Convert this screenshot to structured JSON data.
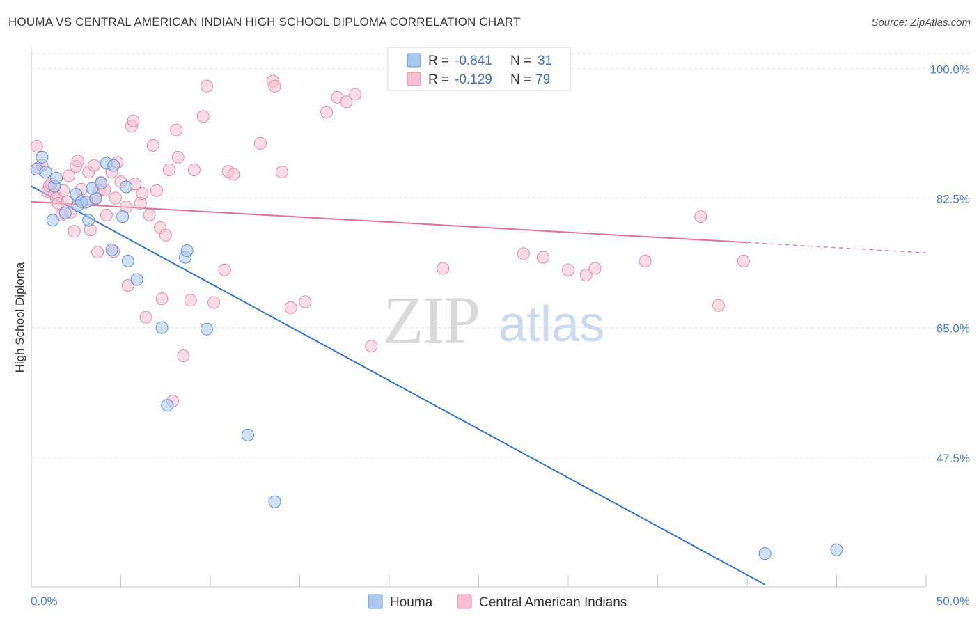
{
  "title": "HOUMA VS CENTRAL AMERICAN INDIAN HIGH SCHOOL DIPLOMA CORRELATION CHART",
  "source": "Source: ZipAtlas.com",
  "watermark": {
    "zip": "ZIP",
    "atlas": "atlas"
  },
  "colors": {
    "houma_fill": "#aac8f0",
    "houma_stroke": "#5b8fd6",
    "houma_line": "#2f75d6",
    "cai_fill": "#f7bfd0",
    "cai_stroke": "#e48aa6",
    "cai_line": "#e0719a",
    "grid": "#dddddd",
    "axis_label": "#4a7fd4"
  },
  "legend_top": {
    "rows": [
      {
        "r_label": "R = ",
        "r_value": "-0.841",
        "n_label": "N = ",
        "n_value": "31"
      },
      {
        "r_label": "R = ",
        "r_value": "-0.129",
        "n_label": "N = ",
        "n_value": "79"
      }
    ]
  },
  "legend_bottom": {
    "items": [
      "Houma",
      "Central American Indians"
    ]
  },
  "chart_data": {
    "type": "scatter",
    "title": "HOUMA VS CENTRAL AMERICAN INDIAN HIGH SCHOOL DIPLOMA CORRELATION CHART",
    "xlabel": "",
    "ylabel": "High School Diploma",
    "xlim": [
      0,
      50
    ],
    "ylim": [
      30,
      102
    ],
    "x_tick_labels": [
      "0.0%",
      "50.0%"
    ],
    "y_ticks": [
      100,
      82.5,
      65,
      47.5
    ],
    "y_tick_labels": [
      "100.0%",
      "82.5%",
      "65.0%",
      "47.5%"
    ],
    "grid": true,
    "legend_placement": "top-center",
    "series": [
      {
        "name": "Houma",
        "r": -0.841,
        "n": 31,
        "trend": {
          "x": [
            0,
            41
          ],
          "y": [
            84.1,
            30.3
          ]
        },
        "points": [
          [
            0.3,
            86.4
          ],
          [
            0.6,
            88.0
          ],
          [
            0.8,
            86.0
          ],
          [
            1.3,
            84.1
          ],
          [
            1.4,
            85.2
          ],
          [
            1.2,
            79.5
          ],
          [
            2.5,
            83.0
          ],
          [
            2.6,
            81.5
          ],
          [
            1.9,
            80.5
          ],
          [
            2.8,
            82.0
          ],
          [
            3.1,
            82.0
          ],
          [
            3.6,
            82.5
          ],
          [
            3.2,
            79.5
          ],
          [
            3.4,
            83.8
          ],
          [
            3.9,
            84.5
          ],
          [
            4.2,
            87.2
          ],
          [
            4.6,
            86.9
          ],
          [
            4.5,
            75.5
          ],
          [
            5.1,
            80.0
          ],
          [
            5.4,
            74.0
          ],
          [
            5.3,
            84.0
          ],
          [
            5.9,
            71.5
          ],
          [
            8.6,
            74.5
          ],
          [
            8.7,
            75.4
          ],
          [
            7.3,
            65.0
          ],
          [
            7.6,
            54.5
          ],
          [
            9.8,
            64.8
          ],
          [
            12.1,
            50.5
          ],
          [
            13.6,
            41.5
          ],
          [
            41.0,
            34.5
          ],
          [
            45.0,
            35.0
          ]
        ]
      },
      {
        "name": "Central American Indians",
        "r": -0.129,
        "n": 79,
        "trend": {
          "x": [
            0,
            40
          ],
          "y": [
            82.0,
            76.5
          ]
        },
        "trend_dashed": {
          "x": [
            40,
            50
          ],
          "y": [
            76.5,
            75.1
          ]
        },
        "points": [
          [
            0.3,
            89.5
          ],
          [
            0.4,
            86.6
          ],
          [
            0.6,
            86.9
          ],
          [
            0.9,
            83.4
          ],
          [
            1.0,
            84.1
          ],
          [
            1.1,
            84.4
          ],
          [
            1.3,
            83.0
          ],
          [
            1.4,
            82.5
          ],
          [
            1.5,
            81.8
          ],
          [
            1.7,
            80.2
          ],
          [
            1.8,
            83.5
          ],
          [
            2.0,
            82.0
          ],
          [
            2.1,
            85.5
          ],
          [
            2.2,
            80.6
          ],
          [
            2.4,
            78.0
          ],
          [
            2.5,
            86.8
          ],
          [
            2.6,
            87.5
          ],
          [
            2.8,
            83.7
          ],
          [
            3.0,
            81.9
          ],
          [
            3.2,
            86.0
          ],
          [
            3.3,
            78.2
          ],
          [
            3.5,
            86.9
          ],
          [
            3.6,
            82.4
          ],
          [
            3.7,
            75.2
          ],
          [
            3.8,
            83.5
          ],
          [
            3.9,
            84.6
          ],
          [
            4.1,
            83.6
          ],
          [
            4.2,
            80.2
          ],
          [
            4.5,
            86.0
          ],
          [
            4.6,
            75.3
          ],
          [
            4.7,
            82.5
          ],
          [
            4.8,
            87.3
          ],
          [
            5.0,
            84.7
          ],
          [
            5.3,
            81.3
          ],
          [
            5.4,
            70.7
          ],
          [
            5.6,
            92.2
          ],
          [
            5.7,
            92.9
          ],
          [
            5.8,
            84.4
          ],
          [
            6.1,
            81.8
          ],
          [
            6.2,
            83.1
          ],
          [
            6.4,
            66.4
          ],
          [
            6.6,
            80.2
          ],
          [
            6.8,
            89.6
          ],
          [
            7.0,
            83.5
          ],
          [
            7.2,
            78.5
          ],
          [
            7.3,
            68.9
          ],
          [
            7.5,
            77.5
          ],
          [
            7.7,
            86.3
          ],
          [
            7.9,
            55.1
          ],
          [
            8.1,
            91.7
          ],
          [
            8.2,
            88.0
          ],
          [
            8.5,
            61.2
          ],
          [
            8.9,
            68.7
          ],
          [
            9.1,
            86.3
          ],
          [
            9.6,
            93.5
          ],
          [
            9.8,
            97.6
          ],
          [
            10.2,
            68.4
          ],
          [
            10.8,
            72.8
          ],
          [
            11.0,
            86.1
          ],
          [
            11.3,
            85.7
          ],
          [
            12.8,
            89.9
          ],
          [
            13.5,
            98.3
          ],
          [
            13.6,
            97.6
          ],
          [
            14.0,
            86.0
          ],
          [
            14.5,
            67.7
          ],
          [
            15.3,
            68.5
          ],
          [
            16.5,
            94.1
          ],
          [
            17.1,
            96.1
          ],
          [
            17.6,
            95.5
          ],
          [
            18.1,
            96.5
          ],
          [
            19.0,
            62.5
          ],
          [
            23.0,
            73.0
          ],
          [
            27.5,
            75.0
          ],
          [
            28.6,
            74.5
          ],
          [
            30.0,
            72.8
          ],
          [
            31.0,
            72.1
          ],
          [
            31.5,
            73.0
          ],
          [
            34.3,
            74.0
          ],
          [
            37.4,
            80.0
          ],
          [
            38.4,
            68.0
          ],
          [
            39.8,
            74.0
          ]
        ]
      }
    ]
  }
}
